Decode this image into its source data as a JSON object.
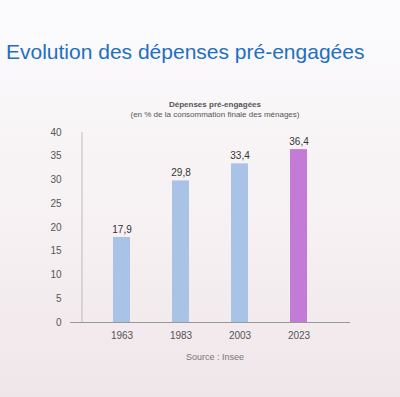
{
  "chart_data": {
    "type": "bar",
    "title": "Evolution des dépenses pré-engagées",
    "chart_title": "Dépenses pré-engagées",
    "subtitle": "(en % de la consommation finale des ménages)",
    "source": "Source : Insee",
    "categories": [
      "1963",
      "1983",
      "2003",
      "2023"
    ],
    "values": [
      17.9,
      29.8,
      33.4,
      36.4
    ],
    "value_labels": [
      "17,9",
      "29,8",
      "33,4",
      "36,4"
    ],
    "colors": [
      "#a9c3e6",
      "#a9c3e6",
      "#a9c3e6",
      "#c47bd8"
    ],
    "ylim": [
      0,
      40
    ],
    "yticks": [
      0,
      5,
      10,
      15,
      20,
      25,
      30,
      35,
      40
    ],
    "grid": false,
    "data_labels": true
  }
}
